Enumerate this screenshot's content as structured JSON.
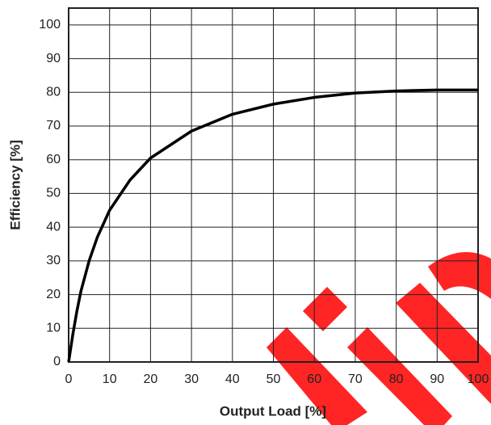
{
  "chart_data": {
    "type": "line",
    "x_label": "Output Load [%]",
    "y_label": "Efficiency [%]",
    "x": [
      0,
      1,
      2,
      3,
      5,
      7,
      10,
      15,
      20,
      30,
      40,
      50,
      60,
      70,
      80,
      90,
      100
    ],
    "series": [
      {
        "color": "#000000",
        "values": [
          0,
          8,
          15,
          21,
          30,
          37,
          45,
          54,
          60.5,
          68.5,
          73.5,
          76.5,
          78.5,
          79.8,
          80.4,
          80.7,
          80.7
        ]
      }
    ],
    "xlim": [
      0,
      100
    ],
    "xticks": [
      0,
      10,
      20,
      30,
      40,
      50,
      60,
      70,
      80,
      90,
      100
    ],
    "ylim": [
      0,
      105
    ],
    "yticks": [
      0,
      10,
      20,
      30,
      40,
      50,
      60,
      70,
      80,
      90,
      100
    ],
    "grid": true
  }
}
